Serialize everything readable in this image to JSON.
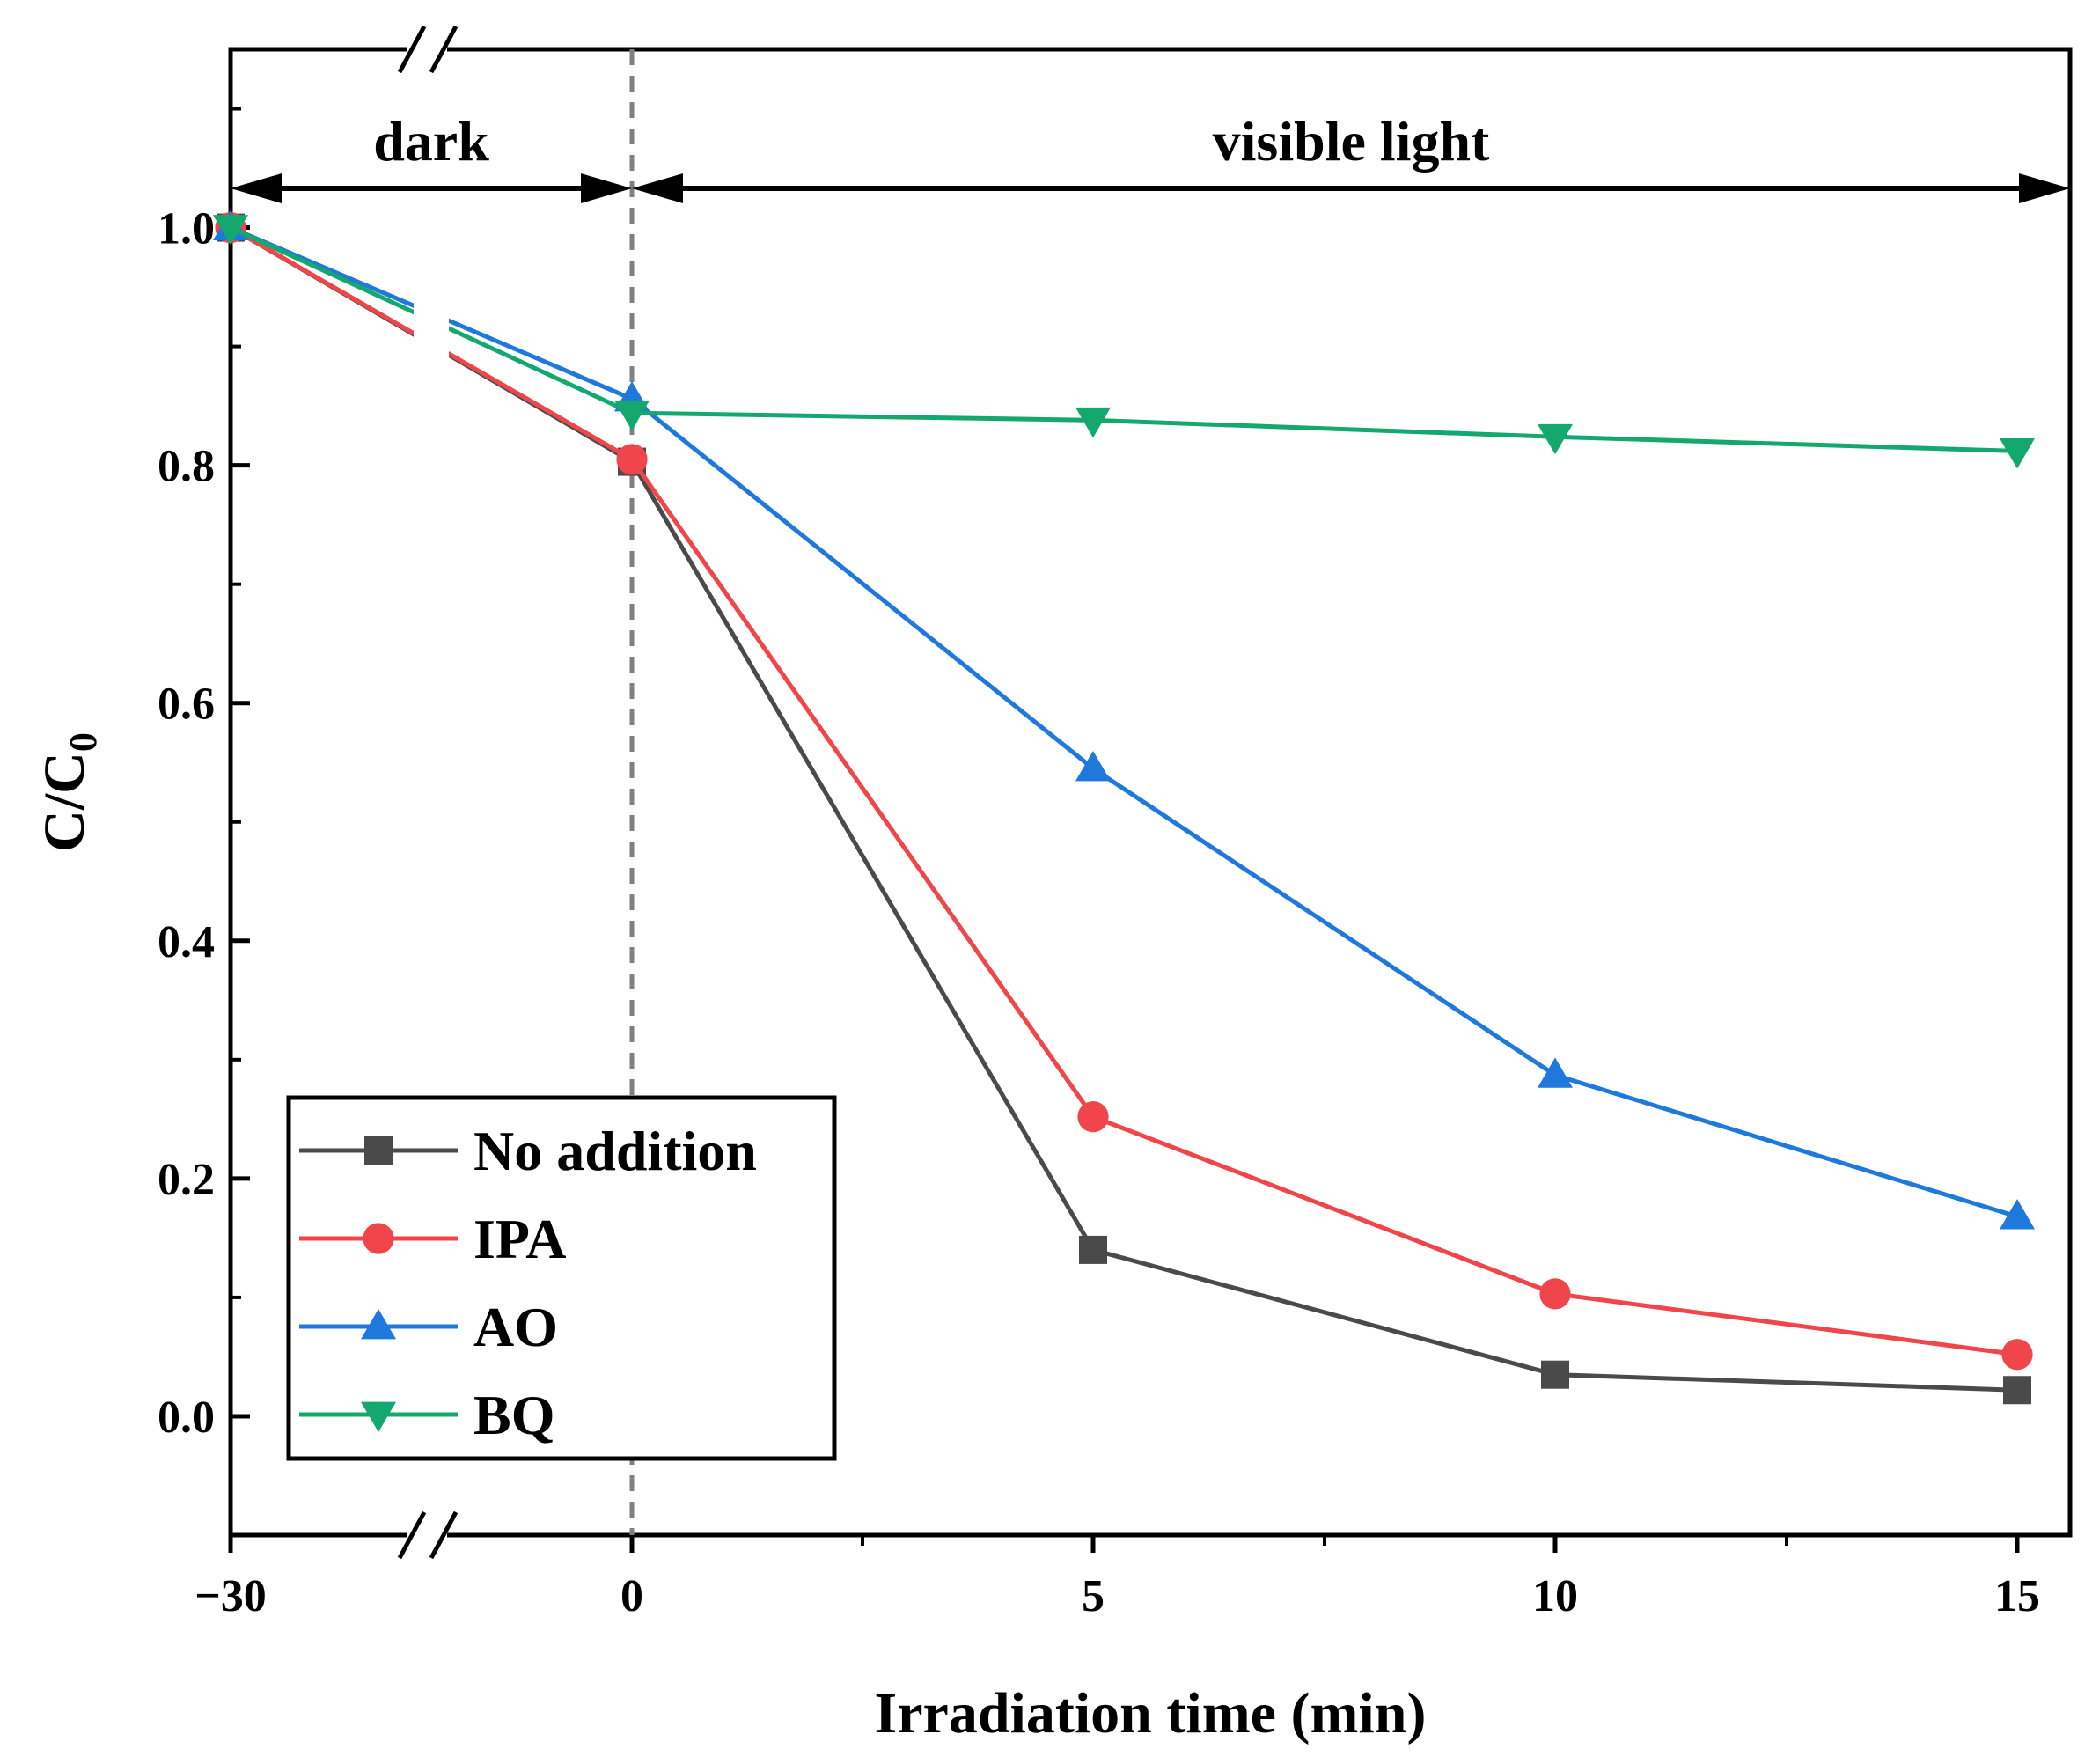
{
  "chart_data": {
    "type": "line",
    "xlabel": "Irradiation time (min)",
    "ylabel": {
      "main": "C/C",
      "sub": "0"
    },
    "x_ticks": [
      "−30",
      "0",
      "5",
      "10",
      "15"
    ],
    "y_ticks": [
      "0.0",
      "0.2",
      "0.4",
      "0.6",
      "0.8",
      "1.0"
    ],
    "ylim": [
      -0.1,
      1.15
    ],
    "x_axis_break": true,
    "regions": [
      {
        "label": "dark",
        "from": "−30",
        "to": "0"
      },
      {
        "label": "visible light",
        "from": "0",
        "to": "15"
      }
    ],
    "divider_at": "0",
    "legend_position": "bottom-left",
    "x": [
      "−30",
      "0",
      "5",
      "10",
      "15"
    ],
    "series": [
      {
        "name": "No addition",
        "color": "#4a4a4a",
        "marker": "square",
        "values": [
          1.0,
          0.803,
          0.14,
          0.035,
          0.022
        ]
      },
      {
        "name": "IPA",
        "color": "#f0454b",
        "marker": "circle",
        "values": [
          1.0,
          0.805,
          0.252,
          0.103,
          0.052
        ]
      },
      {
        "name": "AO",
        "color": "#1f78dc",
        "marker": "triangle-up",
        "values": [
          1.0,
          0.856,
          0.545,
          0.287,
          0.168
        ]
      },
      {
        "name": "BQ",
        "color": "#14a86e",
        "marker": "triangle-down",
        "values": [
          1.0,
          0.844,
          0.838,
          0.824,
          0.812
        ]
      }
    ]
  }
}
